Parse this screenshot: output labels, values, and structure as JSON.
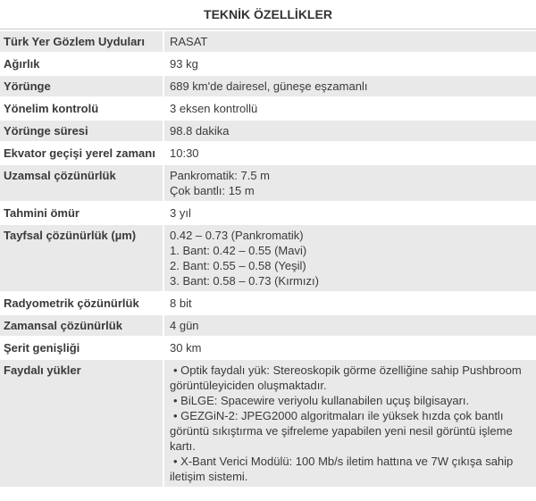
{
  "title": "TEKNİK ÖZELLİKLER",
  "icons": {
    "bullet": "•"
  },
  "colors": {
    "row_shade": "#e9e9e9",
    "divider": "#cccccc",
    "text": "#3a3a3a",
    "background": "#ffffff"
  },
  "table": {
    "columns": [
      "property",
      "value"
    ],
    "rows": [
      {
        "label": "Türk Yer Gözlem Uyduları",
        "value_lines": [
          "RASAT"
        ],
        "shaded": true
      },
      {
        "label": "Ağırlık",
        "value_lines": [
          "93 kg"
        ],
        "shaded": false
      },
      {
        "label": "Yörünge",
        "value_lines": [
          "689 km'de dairesel, güneşe eşzamanlı"
        ],
        "shaded": true
      },
      {
        "label": "Yönelim kontrolü",
        "value_lines": [
          "3 eksen kontrollü"
        ],
        "shaded": false
      },
      {
        "label": "Yörünge süresi",
        "value_lines": [
          "98.8 dakika"
        ],
        "shaded": true
      },
      {
        "label": "Ekvator geçişi yerel zamanı",
        "value_lines": [
          "10:30"
        ],
        "shaded": false
      },
      {
        "label": "Uzamsal çözünürlük",
        "value_lines": [
          "Pankromatik: 7.5 m",
          "Çok bantlı: 15 m"
        ],
        "shaded": true
      },
      {
        "label": "Tahmini ömür",
        "value_lines": [
          "3 yıl"
        ],
        "shaded": false
      },
      {
        "label": "Tayfsal çözünürlük (µm)",
        "value_lines": [
          "0.42 – 0.73 (Pankromatik)",
          "1. Bant: 0.42 – 0.55 (Mavi)",
          "2. Bant: 0.55 – 0.58 (Yeşil)",
          "3. Bant: 0.58 – 0.73 (Kırmızı)"
        ],
        "shaded": true
      },
      {
        "label": "Radyometrik çözünürlük",
        "value_lines": [
          "8 bit"
        ],
        "shaded": false
      },
      {
        "label": "Zamansal çözünürlük",
        "value_lines": [
          "4 gün"
        ],
        "shaded": true
      },
      {
        "label": "Şerit genişliği",
        "value_lines": [
          "30 km"
        ],
        "shaded": false
      },
      {
        "label": "Faydalı yükler",
        "bullets": [
          "Optik faydalı yük: Stereoskopik görme özelliğine sahip Pushbroom görüntüleyiciden oluşmaktadır.",
          "BiLGE: Spacewire veriyolu kullanabilen uçuş bilgisayarı.",
          "GEZGiN-2: JPEG2000 algoritmaları ile yüksek hızda çok bantlı görüntü sıkıştırma ve şifreleme yapabilen yeni nesil görüntü işleme kartı.",
          "X-Bant Verici Modülü: 100 Mb/s iletim hattına ve 7W çıkışa sahip iletişim sistemi."
        ],
        "shaded": true
      }
    ]
  }
}
